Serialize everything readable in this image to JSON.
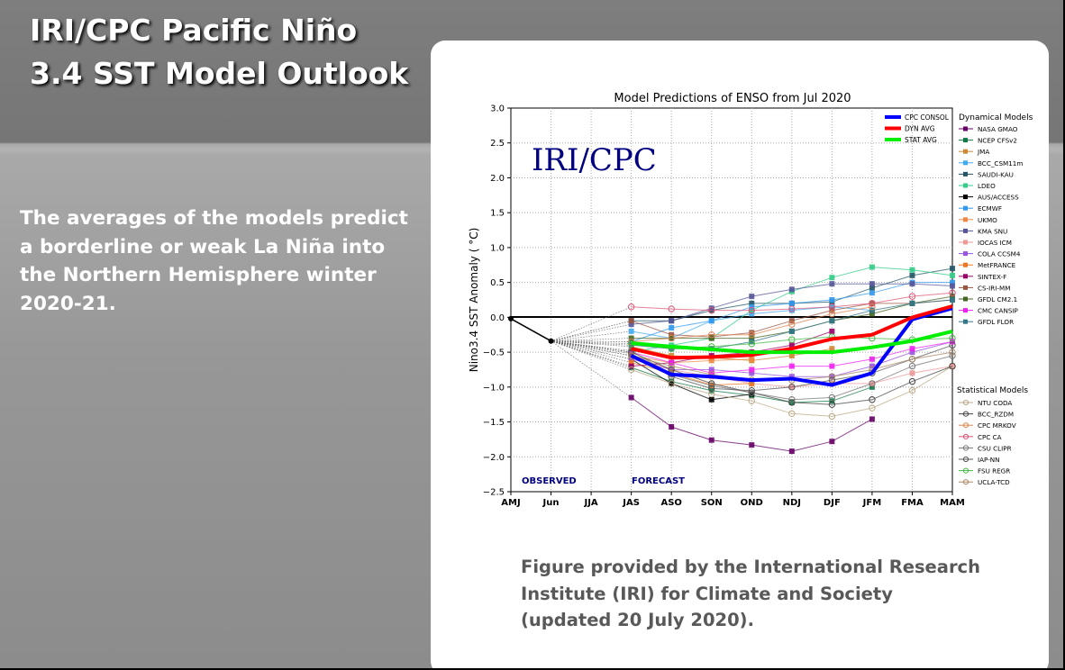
{
  "slide": {
    "title_line1": "IRI/CPC Pacific Niño",
    "title_line2": "3.4 SST Model Outlook",
    "description": "The averages of the models predict a borderline or weak La Niña into the Northern Hemisphere winter 2020-21.",
    "caption_line1": "Figure provided by the International Research",
    "caption_line2": "Institute (IRI) for Climate and Society",
    "caption_line3": "(updated 20 July 2020)."
  },
  "chart_data": {
    "type": "line",
    "title": "Model Predictions of ENSO from Jul 2020",
    "ylabel": "Nino3.4 SST Anomaly ( °C)",
    "watermark": "IRI/CPC",
    "observed_label": "OBSERVED",
    "forecast_label": "FORECAST",
    "categories": [
      "AMJ",
      "Jun",
      "JJA",
      "JAS",
      "ASO",
      "SON",
      "OND",
      "NDJ",
      "DJF",
      "JFM",
      "FMA",
      "MAM"
    ],
    "ylim": [
      -2.5,
      3.0
    ],
    "yticks": [
      "3.0",
      "2.5",
      "2.0",
      "1.5",
      "1.0",
      "0.5",
      "0.0",
      "−0.5",
      "−1.0",
      "−1.5",
      "−2.0",
      "−2.5"
    ],
    "grid": true,
    "observed": [
      -0.02,
      -0.34
    ],
    "summary_series": [
      {
        "name": "CPC CONSOL",
        "color": "#0000ff",
        "values": [
          null,
          null,
          null,
          -0.55,
          -0.82,
          -0.85,
          -0.9,
          -0.88,
          -0.97,
          -0.8,
          -0.03,
          0.13
        ]
      },
      {
        "name": "DYN AVG",
        "color": "#ff0000",
        "values": [
          null,
          null,
          null,
          -0.45,
          -0.58,
          -0.57,
          -0.54,
          -0.45,
          -0.31,
          -0.25,
          0.0,
          0.16
        ]
      },
      {
        "name": "STAT AVG",
        "color": "#00ee00",
        "values": [
          null,
          null,
          null,
          -0.37,
          -0.42,
          -0.46,
          -0.5,
          -0.5,
          -0.5,
          -0.43,
          -0.34,
          -0.2
        ]
      }
    ],
    "legend_dynamical_title": "Dynamical Models",
    "legend_statistical_title": "Statistical Models",
    "dynamical_series": [
      {
        "name": "NASA GMAO",
        "color": "#660066",
        "values": [
          null,
          null,
          null,
          -1.15,
          -1.57,
          -1.76,
          -1.83,
          -1.92,
          -1.78,
          -1.46,
          null,
          null
        ]
      },
      {
        "name": "NCEP CFSv2",
        "color": "#117744",
        "values": [
          null,
          null,
          null,
          -0.72,
          -0.92,
          -1.05,
          -1.12,
          -1.22,
          -1.2,
          -1.0,
          null,
          null
        ]
      },
      {
        "name": "JMA",
        "color": "#cc8833",
        "values": [
          null,
          null,
          null,
          -0.42,
          -0.55,
          -0.58,
          -0.62,
          -0.55,
          -0.45,
          null,
          null,
          null
        ]
      },
      {
        "name": "BCC_CSM11m",
        "color": "#44aaee",
        "values": [
          null,
          null,
          null,
          -0.2,
          -0.3,
          -0.05,
          0.05,
          0.1,
          0.15,
          0.1,
          null,
          null
        ]
      },
      {
        "name": "SAUDI-KAU",
        "color": "#225566",
        "values": [
          null,
          null,
          null,
          -0.05,
          -0.05,
          0.1,
          0.2,
          0.2,
          0.22,
          0.42,
          0.6,
          0.7
        ]
      },
      {
        "name": "LDEO",
        "color": "#33cc88",
        "values": [
          null,
          null,
          null,
          -0.5,
          -0.4,
          -0.3,
          0.1,
          0.37,
          0.57,
          0.72,
          0.68,
          0.6
        ]
      },
      {
        "name": "AUS/ACCESS",
        "color": "#000000",
        "values": [
          null,
          null,
          null,
          -0.6,
          -0.95,
          -1.18,
          -1.1,
          null,
          null,
          null,
          null,
          null
        ]
      },
      {
        "name": "ECMWF",
        "color": "#3399ee",
        "values": [
          null,
          null,
          null,
          -0.35,
          -0.15,
          -0.05,
          0.15,
          0.2,
          0.25,
          0.35,
          0.5,
          0.5
        ]
      },
      {
        "name": "UKMO",
        "color": "#ee8844",
        "values": [
          null,
          null,
          null,
          -0.55,
          -0.65,
          -0.62,
          -0.6,
          null,
          null,
          null,
          null,
          null
        ]
      },
      {
        "name": "KMA SNU",
        "color": "#555599",
        "values": [
          null,
          null,
          null,
          -0.1,
          -0.05,
          0.13,
          0.3,
          0.4,
          0.48,
          0.48,
          0.48,
          0.45
        ]
      },
      {
        "name": "IOCAS ICM",
        "color": "#ee9999",
        "values": [
          null,
          null,
          null,
          -0.55,
          -0.75,
          -0.85,
          -0.95,
          -1.0,
          -0.95,
          -0.95,
          -0.8,
          -0.7
        ]
      },
      {
        "name": "COLA CCSM4",
        "color": "#9955dd",
        "values": [
          null,
          null,
          null,
          -0.6,
          -0.75,
          -0.75,
          -0.8,
          -0.85,
          -0.85,
          -0.7,
          -0.5,
          -0.35
        ]
      },
      {
        "name": "MetFRANCE",
        "color": "#ee7722",
        "values": [
          null,
          null,
          null,
          -0.65,
          -0.8,
          -0.97,
          -0.95,
          null,
          null,
          null,
          null,
          null
        ]
      },
      {
        "name": "SINTEX-F",
        "color": "#990066",
        "values": [
          null,
          null,
          null,
          -0.7,
          -0.65,
          -0.55,
          -0.5,
          -0.4,
          -0.2,
          null,
          null,
          null
        ]
      },
      {
        "name": "CS-IRI-MM",
        "color": "#995544",
        "values": [
          null,
          null,
          null,
          -0.05,
          -0.25,
          -0.28,
          -0.22,
          -0.05,
          0.1,
          0.2,
          0.2,
          0.25
        ]
      },
      {
        "name": "GFDL CM2.1",
        "color": "#446622",
        "values": [
          null,
          null,
          null,
          -0.3,
          -0.3,
          -0.3,
          -0.3,
          -0.2,
          -0.05,
          0.05,
          0.2,
          0.3
        ]
      },
      {
        "name": "CMC CANSIP",
        "color": "#ee22ee",
        "values": [
          null,
          null,
          null,
          -0.5,
          -0.65,
          -0.8,
          -0.75,
          -0.7,
          -0.7,
          -0.6,
          -0.45,
          -0.35
        ]
      },
      {
        "name": "GFDL FLOR",
        "color": "#337788",
        "values": [
          null,
          null,
          null,
          -0.4,
          -0.45,
          -0.45,
          -0.35,
          -0.2,
          -0.05,
          0.1,
          0.2,
          0.25
        ]
      }
    ],
    "statistical_series": [
      {
        "name": "NTU CODA",
        "color": "#bbaa88",
        "values": [
          null,
          null,
          null,
          -0.75,
          -0.95,
          -1.1,
          -1.2,
          -1.38,
          -1.42,
          -1.3,
          -1.05,
          -0.7
        ]
      },
      {
        "name": "BCC_RZDM",
        "color": "#444444",
        "values": [
          null,
          null,
          null,
          -0.5,
          -0.75,
          -0.95,
          -1.08,
          -1.22,
          -1.25,
          -1.18,
          -0.92,
          -0.7
        ]
      },
      {
        "name": "CPC MRKOV",
        "color": "#dd8855",
        "values": [
          null,
          null,
          null,
          -0.35,
          -0.3,
          -0.25,
          -0.25,
          -0.1,
          0.05,
          0.15,
          null,
          null
        ]
      },
      {
        "name": "CPC CA",
        "color": "#dd5577",
        "values": [
          null,
          null,
          null,
          0.15,
          0.12,
          0.1,
          0.1,
          0.12,
          0.15,
          0.2,
          0.3,
          0.35
        ]
      },
      {
        "name": "CSU CLIPR",
        "color": "#777777",
        "values": [
          null,
          null,
          null,
          -0.48,
          -0.82,
          -0.98,
          -1.08,
          -1.18,
          -1.15,
          -0.95,
          -0.7,
          -0.55
        ]
      },
      {
        "name": "IAP-NN",
        "color": "#555555",
        "values": [
          null,
          null,
          null,
          -0.52,
          -0.85,
          -1.02,
          -1.05,
          -1.0,
          -0.9,
          -0.8,
          -0.6,
          -0.4
        ]
      },
      {
        "name": "FSU REGR",
        "color": "#44bb44",
        "values": [
          null,
          null,
          null,
          -0.38,
          -0.45,
          -0.42,
          -0.38,
          -0.32,
          -0.28,
          -0.3,
          -0.32,
          -0.3
        ]
      },
      {
        "name": "UCLA-TCD",
        "color": "#aa8866",
        "values": [
          null,
          null,
          null,
          -0.55,
          -0.7,
          -0.82,
          -0.9,
          -0.9,
          -0.85,
          -0.75,
          -0.6,
          -0.5
        ]
      }
    ]
  }
}
